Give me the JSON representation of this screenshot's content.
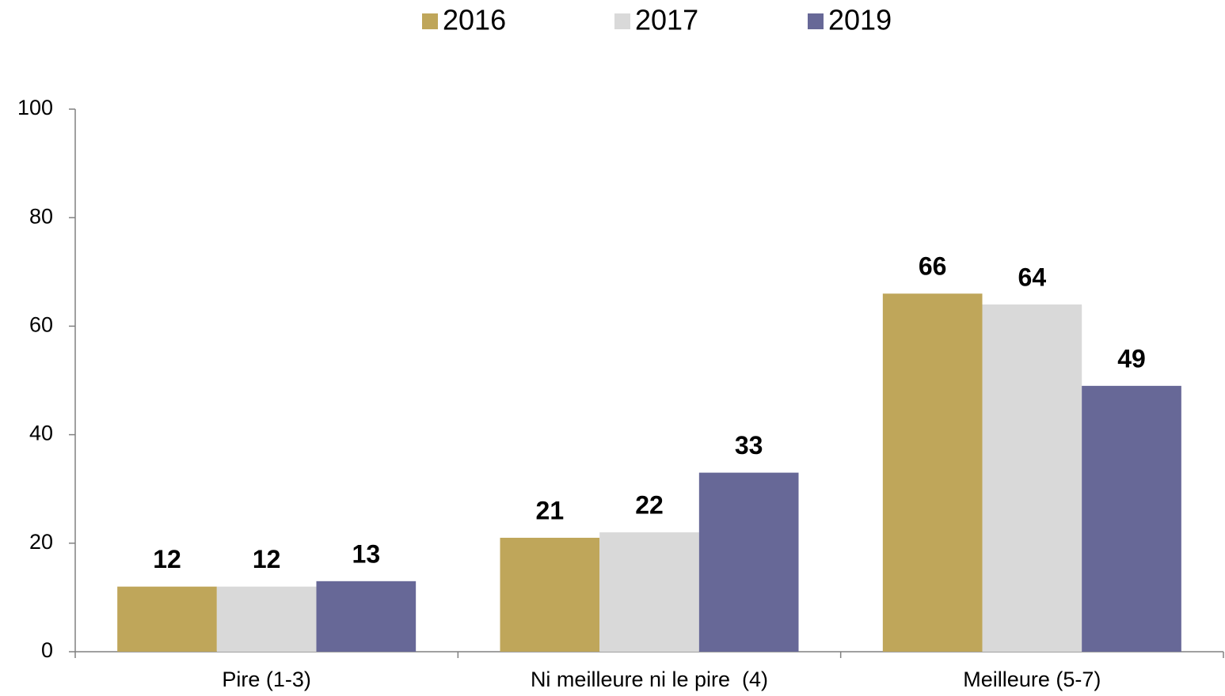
{
  "chart_data": {
    "type": "bar",
    "categories": [
      "Pire (1-3)",
      "Ni meilleure ni le pire  (4)",
      "Meilleure (5-7)"
    ],
    "series": [
      {
        "name": "2016",
        "color": "#bfa65a",
        "values": [
          12,
          21,
          66
        ]
      },
      {
        "name": "2017",
        "color": "#d9d9d9",
        "values": [
          12,
          22,
          64
        ]
      },
      {
        "name": "2019",
        "color": "#676897",
        "values": [
          13,
          33,
          49
        ]
      }
    ],
    "ylim": [
      0,
      100
    ],
    "yticks": [
      0,
      20,
      40,
      60,
      80,
      100
    ],
    "grid": false,
    "legend": "top"
  }
}
